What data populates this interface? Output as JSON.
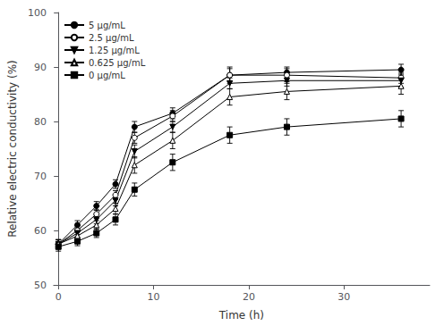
{
  "chart_data": {
    "type": "line",
    "xlabel": "Time (h)",
    "ylabel": "Relative electric conductivity (%)",
    "xlim": [
      -0.5,
      39
    ],
    "ylim": [
      50,
      100
    ],
    "xticks": [
      0,
      10,
      20,
      30
    ],
    "yticks": [
      50,
      60,
      70,
      80,
      90,
      100
    ],
    "grid": false,
    "legend": "upper left",
    "series": [
      {
        "name": "5 μg/mL",
        "color": "black",
        "marker": "circle",
        "x": [
          0,
          2,
          4,
          6,
          8,
          12,
          18,
          24,
          36
        ],
        "values": [
          57.5,
          61.0,
          64.5,
          68.5,
          79.0,
          81.5,
          88.5,
          89.0,
          89.5
        ],
        "errors": [
          0.8,
          0.8,
          0.8,
          0.8,
          1.0,
          1.0,
          1.2,
          1.0,
          1.0
        ]
      },
      {
        "name": "2.5 μg/mL",
        "color": "black",
        "marker": "open circle",
        "x": [
          0,
          2,
          4,
          6,
          8,
          12,
          18,
          24,
          36
        ],
        "values": [
          57.5,
          60.0,
          63.0,
          66.5,
          77.0,
          81.0,
          88.5,
          88.5,
          88.0
        ],
        "errors": [
          0.8,
          0.8,
          0.8,
          0.8,
          1.0,
          1.0,
          1.5,
          1.2,
          1.0
        ]
      },
      {
        "name": "1.25 μg/mL",
        "color": "black",
        "marker": "triangle down",
        "x": [
          0,
          2,
          4,
          6,
          8,
          12,
          18,
          24,
          36
        ],
        "values": [
          57.5,
          59.5,
          62.0,
          65.5,
          74.5,
          79.0,
          87.0,
          87.5,
          87.5
        ],
        "errors": [
          0.8,
          0.8,
          0.8,
          1.0,
          1.2,
          1.0,
          1.0,
          1.0,
          1.2
        ]
      },
      {
        "name": "0.625 μg/mL",
        "color": "black",
        "marker": "open triangle up",
        "x": [
          0,
          2,
          4,
          6,
          8,
          12,
          18,
          24,
          36
        ],
        "values": [
          57.5,
          59.0,
          61.0,
          64.0,
          72.0,
          76.5,
          84.5,
          85.5,
          86.5
        ],
        "errors": [
          0.8,
          0.8,
          0.8,
          1.0,
          1.5,
          1.5,
          1.5,
          1.5,
          1.5
        ]
      },
      {
        "name": "0 μg/mL",
        "color": "black",
        "marker": "square",
        "x": [
          0,
          2,
          4,
          6,
          8,
          12,
          18,
          24,
          36
        ],
        "values": [
          57.0,
          58.0,
          59.5,
          62.0,
          67.5,
          72.5,
          77.5,
          79.0,
          80.5
        ],
        "errors": [
          0.8,
          0.8,
          0.8,
          1.0,
          1.2,
          1.5,
          1.5,
          1.5,
          1.5
        ]
      }
    ]
  }
}
